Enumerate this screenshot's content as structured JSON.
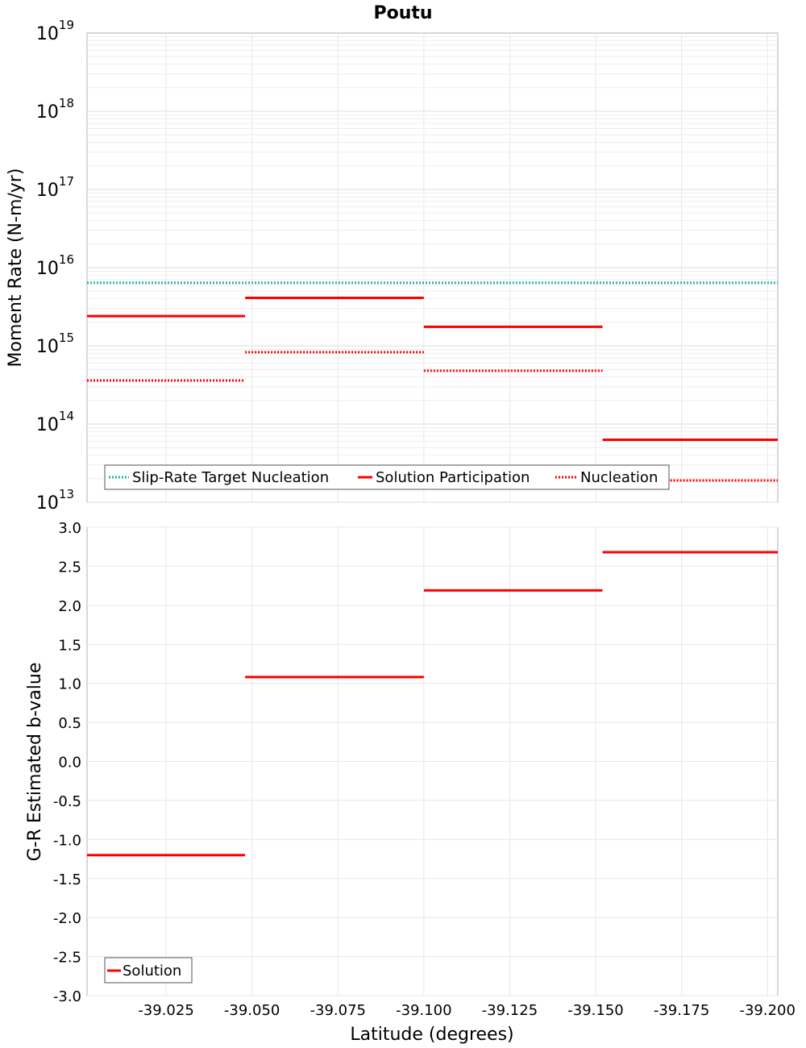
{
  "chart_data": [
    {
      "type": "line",
      "title": "Poutu",
      "xlabel": "",
      "ylabel": "Moment Rate (N-m/yr)",
      "y_scale": "log",
      "xlim": [
        -39.002,
        -39.203
      ],
      "ylim": [
        10000000000000.0,
        1e+19
      ],
      "y_ticks": [
        {
          "base": "10",
          "exp": "13",
          "value": 10000000000000.0
        },
        {
          "base": "10",
          "exp": "14",
          "value": 100000000000000.0
        },
        {
          "base": "10",
          "exp": "15",
          "value": 1000000000000000.0
        },
        {
          "base": "10",
          "exp": "16",
          "value": 1e+16
        },
        {
          "base": "10",
          "exp": "17",
          "value": 1e+17
        },
        {
          "base": "10",
          "exp": "18",
          "value": 1e+18
        },
        {
          "base": "10",
          "exp": "19",
          "value": 1e+19
        }
      ],
      "grid": true,
      "legend_position": "bottom-left",
      "series": [
        {
          "name": "Slip-Rate Target Nucleation",
          "color": "#1fb5b5",
          "style": "dotted",
          "segments": [
            {
              "x": [
                -39.002,
                -39.203
              ],
              "y": 6400000000000000.0
            }
          ]
        },
        {
          "name": "Solution Participation",
          "color": "#ff0000",
          "style": "solid",
          "segments": [
            {
              "x": [
                -39.002,
                -39.048
              ],
              "y": 2400000000000000.0
            },
            {
              "x": [
                -39.048,
                -39.1
              ],
              "y": 4100000000000000.0
            },
            {
              "x": [
                -39.1,
                -39.152
              ],
              "y": 1750000000000000.0
            },
            {
              "x": [
                -39.152,
                -39.203
              ],
              "y": 63000000000000.0
            }
          ]
        },
        {
          "name": "Nucleation",
          "color": "#ff0000",
          "style": "dotted",
          "segments": [
            {
              "x": [
                -39.002,
                -39.048
              ],
              "y": 360000000000000.0
            },
            {
              "x": [
                -39.048,
                -39.1
              ],
              "y": 830000000000000.0
            },
            {
              "x": [
                -39.1,
                -39.152
              ],
              "y": 480000000000000.0
            },
            {
              "x": [
                -39.152,
                -39.203
              ],
              "y": 19000000000000.0
            }
          ]
        }
      ]
    },
    {
      "type": "line",
      "title": "",
      "xlabel": "Latitude (degrees)",
      "ylabel": "G-R Estimated b-value",
      "xlim": [
        -39.002,
        -39.203
      ],
      "ylim": [
        -3.0,
        3.0
      ],
      "x_ticks": [
        "-39.025",
        "-39.050",
        "-39.075",
        "-39.100",
        "-39.125",
        "-39.150",
        "-39.175",
        "-39.200"
      ],
      "x_tick_values": [
        -39.025,
        -39.05,
        -39.075,
        -39.1,
        -39.125,
        -39.15,
        -39.175,
        -39.2
      ],
      "y_ticks": [
        "-3.0",
        "-2.5",
        "-2.0",
        "-1.5",
        "-1.0",
        "-0.5",
        "0.0",
        "0.5",
        "1.0",
        "1.5",
        "2.0",
        "2.5",
        "3.0"
      ],
      "y_tick_values": [
        -3.0,
        -2.5,
        -2.0,
        -1.5,
        -1.0,
        -0.5,
        0.0,
        0.5,
        1.0,
        1.5,
        2.0,
        2.5,
        3.0
      ],
      "grid": true,
      "legend_position": "bottom-left",
      "series": [
        {
          "name": "Solution",
          "color": "#ff0000",
          "style": "solid",
          "segments": [
            {
              "x": [
                -39.002,
                -39.048
              ],
              "y": -1.2
            },
            {
              "x": [
                -39.048,
                -39.1
              ],
              "y": 1.08
            },
            {
              "x": [
                -39.1,
                -39.152
              ],
              "y": 2.19
            },
            {
              "x": [
                -39.152,
                -39.203
              ],
              "y": 2.68
            }
          ]
        }
      ]
    }
  ]
}
